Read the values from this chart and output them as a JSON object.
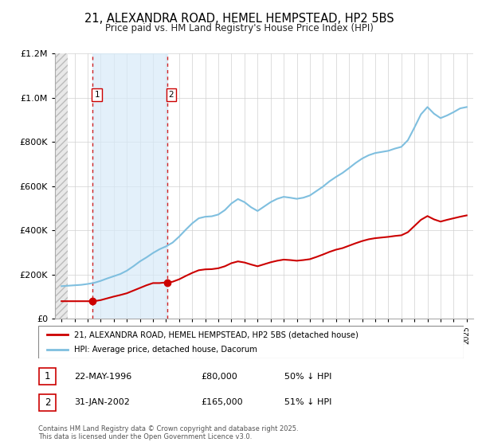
{
  "title": "21, ALEXANDRA ROAD, HEMEL HEMPSTEAD, HP2 5BS",
  "subtitle": "Price paid vs. HM Land Registry's House Price Index (HPI)",
  "legend_line1": "21, ALEXANDRA ROAD, HEMEL HEMPSTEAD, HP2 5BS (detached house)",
  "legend_line2": "HPI: Average price, detached house, Dacorum",
  "footer": "Contains HM Land Registry data © Crown copyright and database right 2025.\nThis data is licensed under the Open Government Licence v3.0.",
  "transactions": [
    {
      "num": 1,
      "date": "22-MAY-1996",
      "price": "£80,000",
      "hpi": "50% ↓ HPI",
      "year": 1996.39
    },
    {
      "num": 2,
      "date": "31-JAN-2002",
      "price": "£165,000",
      "hpi": "51% ↓ HPI",
      "year": 2002.08
    }
  ],
  "hpi_color": "#7fbfdf",
  "price_color": "#cc0000",
  "dashed_color": "#cc0000",
  "shade_color": "#d8eaf8",
  "ylim": [
    0,
    1200000
  ],
  "xlim_start": 1994,
  "xlim_end": 2025.5,
  "hpi_data_years": [
    1994.0,
    1994.5,
    1995.0,
    1995.5,
    1996.0,
    1996.5,
    1997.0,
    1997.5,
    1998.0,
    1998.5,
    1999.0,
    1999.5,
    2000.0,
    2000.5,
    2001.0,
    2001.5,
    2002.0,
    2002.5,
    2003.0,
    2003.5,
    2004.0,
    2004.5,
    2005.0,
    2005.5,
    2006.0,
    2006.5,
    2007.0,
    2007.5,
    2008.0,
    2008.5,
    2009.0,
    2009.5,
    2010.0,
    2010.5,
    2011.0,
    2011.5,
    2012.0,
    2012.5,
    2013.0,
    2013.5,
    2014.0,
    2014.5,
    2015.0,
    2015.5,
    2016.0,
    2016.5,
    2017.0,
    2017.5,
    2018.0,
    2018.5,
    2019.0,
    2019.5,
    2020.0,
    2020.5,
    2021.0,
    2021.5,
    2022.0,
    2022.5,
    2023.0,
    2023.5,
    2024.0,
    2024.5,
    2025.0
  ],
  "hpi_data_values": [
    148000,
    150000,
    152000,
    154000,
    158000,
    163000,
    172000,
    183000,
    193000,
    203000,
    218000,
    238000,
    260000,
    278000,
    298000,
    315000,
    328000,
    345000,
    372000,
    403000,
    432000,
    455000,
    462000,
    464000,
    472000,
    492000,
    522000,
    542000,
    528000,
    505000,
    488000,
    508000,
    528000,
    543000,
    552000,
    548000,
    543000,
    548000,
    558000,
    578000,
    598000,
    622000,
    642000,
    660000,
    682000,
    705000,
    725000,
    740000,
    750000,
    755000,
    760000,
    770000,
    778000,
    808000,
    865000,
    925000,
    958000,
    928000,
    908000,
    920000,
    935000,
    952000,
    958000
  ],
  "price_line_years": [
    1994.0,
    1994.5,
    1995.0,
    1995.5,
    1996.0,
    1996.39,
    1996.5,
    1997.0,
    1997.5,
    1998.0,
    1998.5,
    1999.0,
    1999.5,
    2000.0,
    2000.5,
    2001.0,
    2001.5,
    2002.0,
    2002.08,
    2002.5,
    2003.0,
    2003.5,
    2004.0,
    2004.5,
    2005.0,
    2005.5,
    2006.0,
    2006.5,
    2007.0,
    2007.5,
    2008.0,
    2008.5,
    2009.0,
    2009.5,
    2010.0,
    2010.5,
    2011.0,
    2011.5,
    2012.0,
    2012.5,
    2013.0,
    2013.5,
    2014.0,
    2014.5,
    2015.0,
    2015.5,
    2016.0,
    2016.5,
    2017.0,
    2017.5,
    2018.0,
    2018.5,
    2019.0,
    2019.5,
    2020.0,
    2020.5,
    2021.0,
    2021.5,
    2022.0,
    2022.5,
    2023.0,
    2023.5,
    2024.0,
    2024.5,
    2025.0
  ],
  "price_line_values": [
    80000,
    80000,
    80000,
    80000,
    80000,
    80000,
    80000,
    85000,
    93000,
    101000,
    108000,
    116000,
    128000,
    140000,
    152000,
    162000,
    162000,
    165000,
    165000,
    168000,
    179000,
    194000,
    208000,
    220000,
    224000,
    225000,
    229000,
    238000,
    252000,
    260000,
    255000,
    246000,
    238000,
    247000,
    256000,
    263000,
    268000,
    266000,
    263000,
    266000,
    270000,
    280000,
    291000,
    303000,
    313000,
    320000,
    331000,
    342000,
    352000,
    360000,
    365000,
    368000,
    371000,
    375000,
    378000,
    392000,
    420000,
    448000,
    465000,
    450000,
    440000,
    448000,
    455000,
    462000,
    468000
  ]
}
